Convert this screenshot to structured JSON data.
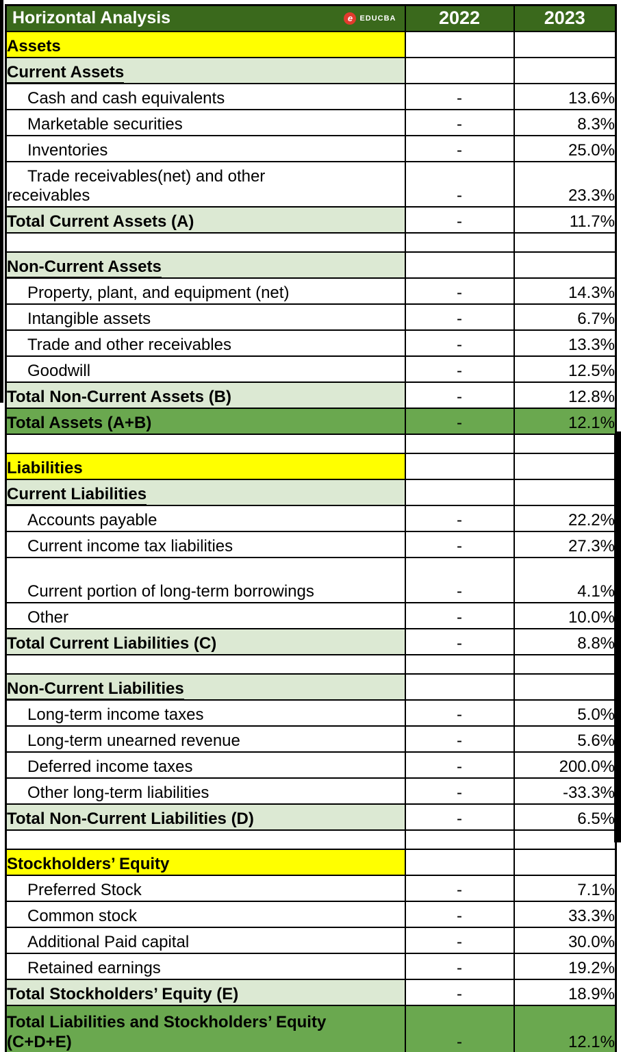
{
  "header": {
    "title": "Horizontal Analysis",
    "logo": {
      "letter": "e",
      "text": "EDUCBA"
    },
    "col_2022": "2022",
    "col_2023": "2023"
  },
  "colors": {
    "header_green": "#3A691C",
    "total_green": "#6AA84F",
    "light_green": "#DCE9D3",
    "yellow": "#FFFF00",
    "logo_red": "#E23B2E",
    "header_text": "#FFFFFF",
    "grid": "#000000"
  },
  "rows": [
    {
      "type": "section_yellow",
      "label": "Assets",
      "v2022": "",
      "v2023": ""
    },
    {
      "type": "section_light",
      "label": "Current Assets",
      "v2022": "",
      "v2023": ""
    },
    {
      "type": "item",
      "label": "Cash and cash equivalents",
      "v2022": "-",
      "v2023": "13.6%"
    },
    {
      "type": "item",
      "label": "Marketable securities",
      "v2022": "-",
      "v2023": "8.3%"
    },
    {
      "type": "item",
      "label": "Inventories",
      "v2022": "-",
      "v2023": "25.0%"
    },
    {
      "type": "item_tall",
      "label": "Trade receivables(net) and other receivables",
      "v2022": "-",
      "v2023": "23.3%"
    },
    {
      "type": "total_light",
      "label": "Total Current Assets (A)",
      "v2022": "-",
      "v2023": "11.7%"
    },
    {
      "type": "blank",
      "label": "",
      "v2022": "",
      "v2023": ""
    },
    {
      "type": "section_light",
      "label": "Non-Current Assets",
      "v2022": "",
      "v2023": ""
    },
    {
      "type": "item",
      "label": "Property, plant, and equipment (net)",
      "v2022": "-",
      "v2023": "14.3%"
    },
    {
      "type": "item",
      "label": "Intangible assets",
      "v2022": "-",
      "v2023": "6.7%"
    },
    {
      "type": "item",
      "label": "Trade and other receivables",
      "v2022": "-",
      "v2023": "13.3%"
    },
    {
      "type": "item",
      "label": "Goodwill",
      "v2022": "-",
      "v2023": "12.5%"
    },
    {
      "type": "total_light",
      "label": "Total Non-Current Assets (B)",
      "v2022": "-",
      "v2023": "12.8%"
    },
    {
      "type": "total_green",
      "label": "Total Assets (A+B)",
      "v2022": "-",
      "v2023": "12.1%"
    },
    {
      "type": "blank",
      "label": "",
      "v2022": "",
      "v2023": ""
    },
    {
      "type": "section_yellow",
      "label": "Liabilities",
      "v2022": "",
      "v2023": ""
    },
    {
      "type": "section_light",
      "label": "Current Liabilities",
      "v2022": "",
      "v2023": ""
    },
    {
      "type": "item",
      "label": "Accounts payable",
      "v2022": "-",
      "v2023": "22.2%"
    },
    {
      "type": "item",
      "label": "Current income tax liabilities",
      "v2022": "-",
      "v2023": "27.3%"
    },
    {
      "type": "item_tall",
      "label": "Current portion of long-term borrowings",
      "v2022": "-",
      "v2023": "4.1%"
    },
    {
      "type": "item",
      "label": "Other",
      "v2022": "-",
      "v2023": "10.0%"
    },
    {
      "type": "total_light",
      "label": "Total Current Liabilities (C)",
      "v2022": "-",
      "v2023": "8.8%"
    },
    {
      "type": "blank",
      "label": "",
      "v2022": "",
      "v2023": ""
    },
    {
      "type": "section_light",
      "label": "Non-Current Liabilities",
      "v2022": "",
      "v2023": ""
    },
    {
      "type": "item",
      "label": "Long-term income taxes",
      "v2022": "-",
      "v2023": "5.0%"
    },
    {
      "type": "item",
      "label": "Long-term unearned revenue",
      "v2022": "-",
      "v2023": "5.6%"
    },
    {
      "type": "item",
      "label": "Deferred income taxes",
      "v2022": "-",
      "v2023": "200.0%"
    },
    {
      "type": "item",
      "label": "Other long-term liabilities",
      "v2022": "-",
      "v2023": "-33.3%"
    },
    {
      "type": "total_light",
      "label": "Total Non-Current Liabilities (D)",
      "v2022": "-",
      "v2023": "6.5%"
    },
    {
      "type": "blank",
      "label": "",
      "v2022": "",
      "v2023": ""
    },
    {
      "type": "section_yellow",
      "label": "Stockholders’ Equity",
      "v2022": "",
      "v2023": ""
    },
    {
      "type": "item",
      "label": "Preferred Stock",
      "v2022": "-",
      "v2023": "7.1%"
    },
    {
      "type": "item",
      "label": "Common stock",
      "v2022": "-",
      "v2023": "33.3%"
    },
    {
      "type": "item",
      "label": "Additional Paid capital",
      "v2022": "-",
      "v2023": "30.0%"
    },
    {
      "type": "item",
      "label": "Retained earnings",
      "v2022": "-",
      "v2023": "19.2%"
    },
    {
      "type": "total_light",
      "label": "Total Stockholders’ Equity (E)",
      "v2022": "-",
      "v2023": "18.9%"
    },
    {
      "type": "total_green_tall",
      "label": "Total Liabilities and Stockholders’ Equity (C+D+E)",
      "v2022": "-",
      "v2023": "12.1%"
    }
  ]
}
